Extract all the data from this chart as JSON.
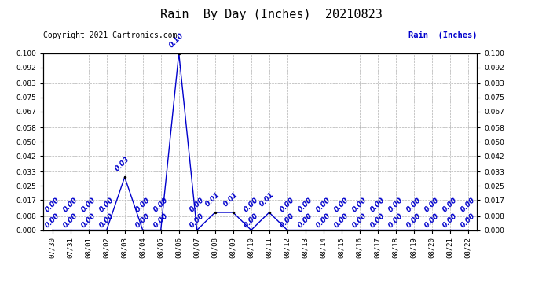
{
  "title": "Rain  By Day (Inches)  20210823",
  "copyright_text": "Copyright 2021 Cartronics.com",
  "legend_text": "Rain  (Inches)",
  "line_color": "#0000cc",
  "background_color": "#ffffff",
  "grid_color": "#b0b0b0",
  "dates": [
    "07/30",
    "07/31",
    "08/01",
    "08/02",
    "08/03",
    "08/04",
    "08/05",
    "08/06",
    "08/07",
    "08/08",
    "08/09",
    "08/10",
    "08/11",
    "08/12",
    "08/13",
    "08/14",
    "08/15",
    "08/16",
    "08/17",
    "08/18",
    "08/19",
    "08/20",
    "08/21",
    "08/22"
  ],
  "values": [
    0.0,
    0.0,
    0.0,
    0.0,
    0.03,
    0.0,
    0.0,
    0.1,
    0.0,
    0.01,
    0.01,
    0.0,
    0.01,
    0.0,
    0.0,
    0.0,
    0.0,
    0.0,
    0.0,
    0.0,
    0.0,
    0.0,
    0.0,
    0.0
  ],
  "ylim": [
    0.0,
    0.1
  ],
  "yticks": [
    0.0,
    0.008,
    0.017,
    0.025,
    0.033,
    0.042,
    0.05,
    0.058,
    0.067,
    0.075,
    0.083,
    0.092,
    0.1
  ],
  "title_fontsize": 11,
  "annotation_fontsize": 6.5,
  "tick_fontsize": 6.5,
  "copyright_fontsize": 7,
  "legend_fontsize": 7.5
}
